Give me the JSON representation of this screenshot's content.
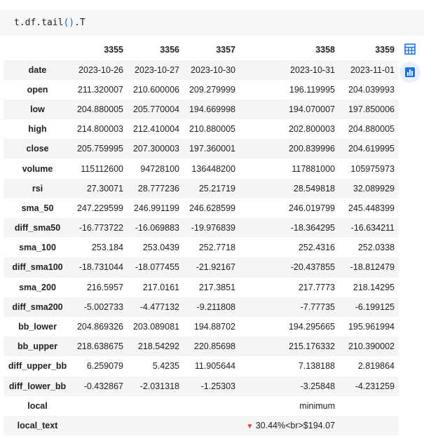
{
  "code": {
    "prefix": "t.df.tail",
    "open_paren": "(",
    "close_paren": ")",
    "suffix": ".T"
  },
  "columns": [
    "",
    "3355",
    "3356",
    "3357",
    "3358",
    "3359"
  ],
  "rows": [
    {
      "label": "date",
      "values": [
        "2023-10-26",
        "2023-10-27",
        "2023-10-30",
        "2023-10-31",
        "2023-11-01"
      ]
    },
    {
      "label": "open",
      "values": [
        "211.320007",
        "210.600006",
        "209.279999",
        "196.119995",
        "204.039993"
      ]
    },
    {
      "label": "low",
      "values": [
        "204.880005",
        "205.770004",
        "194.669998",
        "194.070007",
        "197.850006"
      ]
    },
    {
      "label": "high",
      "values": [
        "214.800003",
        "212.410004",
        "210.880005",
        "202.800003",
        "204.880005"
      ]
    },
    {
      "label": "close",
      "values": [
        "205.759995",
        "207.300003",
        "197.360001",
        "200.839996",
        "204.619995"
      ]
    },
    {
      "label": "volume",
      "values": [
        "115112600",
        "94728100",
        "136448200",
        "117881000",
        "105975973"
      ]
    },
    {
      "label": "rsi",
      "values": [
        "27.30071",
        "28.777236",
        "25.21719",
        "28.549818",
        "32.089929"
      ]
    },
    {
      "label": "sma_50",
      "values": [
        "247.229599",
        "246.991199",
        "246.628599",
        "246.019799",
        "245.448399"
      ]
    },
    {
      "label": "diff_sma50",
      "values": [
        "-16.773722",
        "-16.069883",
        "-19.976839",
        "-18.364295",
        "-16.634211"
      ]
    },
    {
      "label": "sma_100",
      "values": [
        "253.184",
        "253.0439",
        "252.7718",
        "252.4316",
        "252.0338"
      ]
    },
    {
      "label": "diff_sma100",
      "values": [
        "-18.731044",
        "-18.077455",
        "-21.92167",
        "-20.437855",
        "-18.812479"
      ]
    },
    {
      "label": "sma_200",
      "values": [
        "216.5957",
        "217.0161",
        "217.3851",
        "217.7773",
        "218.14295"
      ]
    },
    {
      "label": "diff_sma200",
      "values": [
        "-5.002733",
        "-4.477132",
        "-9.211808",
        "-7.77735",
        "-6.199125"
      ]
    },
    {
      "label": "bb_lower",
      "values": [
        "204.869326",
        "203.089081",
        "194.88702",
        "194.295665",
        "195.961994"
      ]
    },
    {
      "label": "bb_upper",
      "values": [
        "218.638675",
        "218.54292",
        "220.85698",
        "215.176332",
        "210.390002"
      ]
    },
    {
      "label": "diff_upper_bb",
      "values": [
        "6.259079",
        "5.4235",
        "11.905644",
        "7.138188",
        "2.819864"
      ]
    },
    {
      "label": "diff_lower_bb",
      "values": [
        "-0.432867",
        "-2.031318",
        "-1.25303",
        "-3.25848",
        "-4.231259"
      ]
    },
    {
      "label": "local",
      "values": [
        "",
        "",
        "",
        "minimum",
        ""
      ]
    },
    {
      "label": "local_text",
      "values": [
        "",
        "",
        "",
        "30.44%<br>$194.07",
        ""
      ],
      "arrow_col": 3,
      "arrow": "▼"
    }
  ],
  "icons": {
    "table": "table-icon",
    "chart": "bar-chart-icon"
  },
  "colors": {
    "accent": "#1a73e8",
    "row_stripe": "#f5f5f5",
    "arrow_red": "#e53935"
  }
}
